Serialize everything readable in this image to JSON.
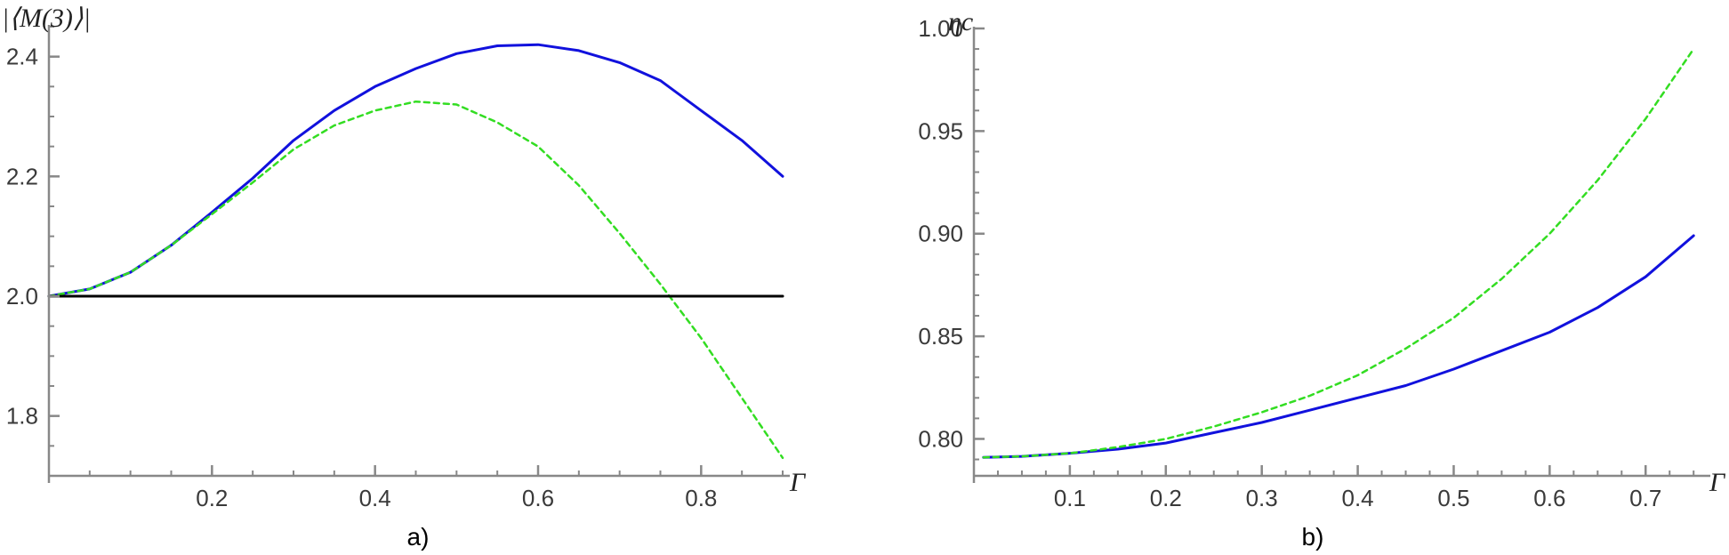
{
  "chart_data": [
    {
      "panel": "a)",
      "type": "line",
      "xlabel": "Γ",
      "ylabel": "|⟨M(3)⟩|",
      "xlim": [
        0,
        0.9
      ],
      "ylim": [
        1.7,
        2.45
      ],
      "xticks": [
        0.2,
        0.4,
        0.6,
        0.8
      ],
      "yticks": [
        1.8,
        2.0,
        2.2,
        2.4
      ],
      "grid": false,
      "series": [
        {
          "color": "#1111dd",
          "style": "solid",
          "x": [
            0,
            0.05,
            0.1,
            0.15,
            0.2,
            0.25,
            0.3,
            0.35,
            0.4,
            0.45,
            0.5,
            0.55,
            0.6,
            0.65,
            0.7,
            0.75,
            0.8,
            0.85,
            0.9
          ],
          "y": [
            2.0,
            2.012,
            2.04,
            2.085,
            2.14,
            2.197,
            2.26,
            2.31,
            2.35,
            2.38,
            2.405,
            2.418,
            2.42,
            2.41,
            2.39,
            2.36,
            2.31,
            2.26,
            2.2
          ]
        },
        {
          "color": "#33dd22",
          "style": "dashed",
          "x": [
            0,
            0.05,
            0.1,
            0.15,
            0.2,
            0.25,
            0.3,
            0.35,
            0.4,
            0.45,
            0.5,
            0.55,
            0.6,
            0.65,
            0.7,
            0.75,
            0.8,
            0.85,
            0.9
          ],
          "y": [
            2.0,
            2.012,
            2.04,
            2.085,
            2.137,
            2.19,
            2.245,
            2.285,
            2.31,
            2.325,
            2.32,
            2.29,
            2.25,
            2.185,
            2.105,
            2.02,
            1.93,
            1.83,
            1.73
          ]
        },
        {
          "color": "#000000",
          "style": "solid",
          "x": [
            0,
            0.9
          ],
          "y": [
            2.0,
            2.0
          ]
        }
      ]
    },
    {
      "panel": "b)",
      "type": "line",
      "xlabel": "Γ",
      "ylabel": "ηc",
      "xlim": [
        0,
        0.76
      ],
      "ylim": [
        0.782,
        1.0
      ],
      "xticks": [
        0.1,
        0.2,
        0.3,
        0.4,
        0.5,
        0.6,
        0.7
      ],
      "yticks": [
        0.8,
        0.85,
        0.9,
        0.95,
        1.0
      ],
      "grid": false,
      "series": [
        {
          "color": "#1111dd",
          "style": "solid",
          "x": [
            0.01,
            0.05,
            0.1,
            0.15,
            0.2,
            0.25,
            0.3,
            0.35,
            0.4,
            0.45,
            0.5,
            0.55,
            0.6,
            0.65,
            0.7,
            0.75
          ],
          "y": [
            0.791,
            0.7915,
            0.793,
            0.795,
            0.798,
            0.803,
            0.808,
            0.814,
            0.82,
            0.826,
            0.834,
            0.843,
            0.852,
            0.864,
            0.879,
            0.899
          ]
        },
        {
          "color": "#33dd22",
          "style": "dashed",
          "x": [
            0.01,
            0.05,
            0.1,
            0.15,
            0.2,
            0.25,
            0.3,
            0.35,
            0.4,
            0.45,
            0.5,
            0.55,
            0.6,
            0.65,
            0.7,
            0.75
          ],
          "y": [
            0.791,
            0.7915,
            0.793,
            0.796,
            0.8,
            0.806,
            0.813,
            0.821,
            0.831,
            0.844,
            0.859,
            0.878,
            0.9,
            0.926,
            0.956,
            0.99
          ]
        }
      ]
    }
  ]
}
